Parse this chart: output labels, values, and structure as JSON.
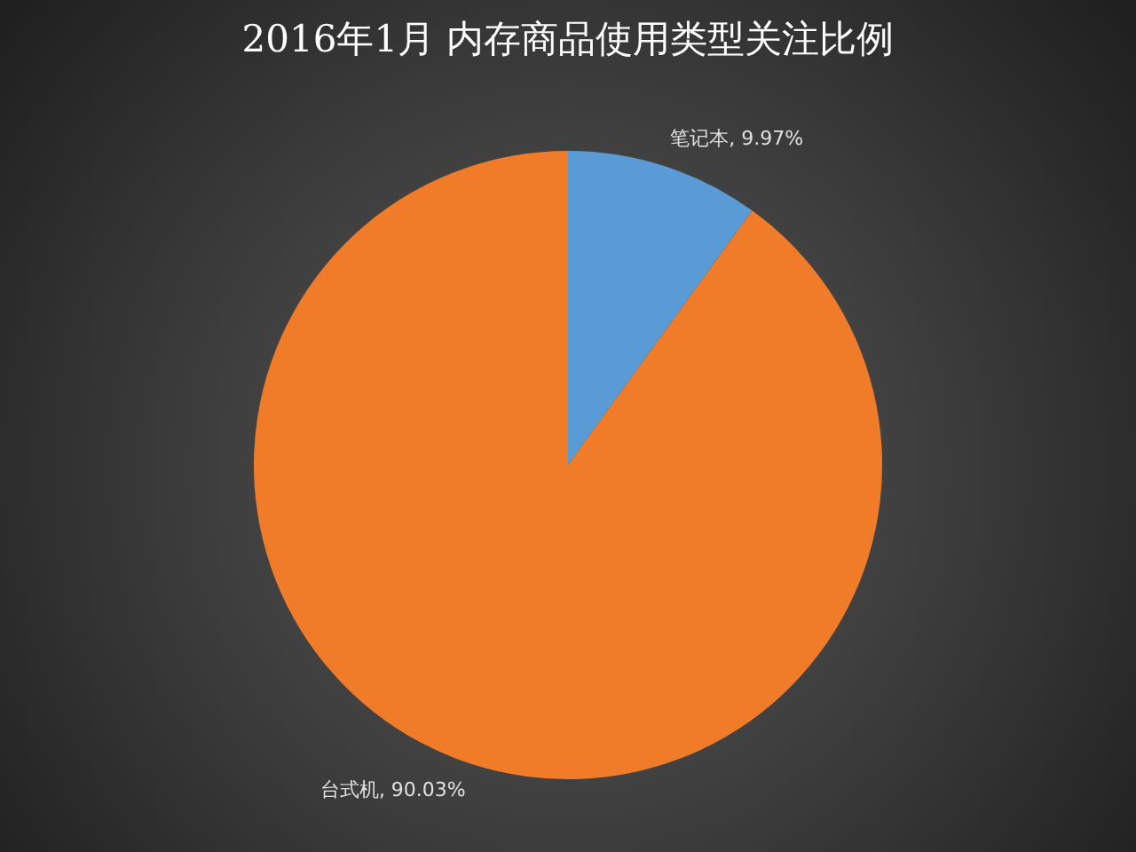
{
  "chart_data": {
    "type": "pie",
    "title": "2016年1月 内存商品使用类型关注比例",
    "categories": [
      "笔记本",
      "台式机"
    ],
    "values": [
      9.97,
      90.03
    ],
    "colors": [
      "#5b9bd5",
      "#f07c2a"
    ],
    "value_labels": [
      "9.97%",
      "90.03%"
    ],
    "legend": false
  }
}
